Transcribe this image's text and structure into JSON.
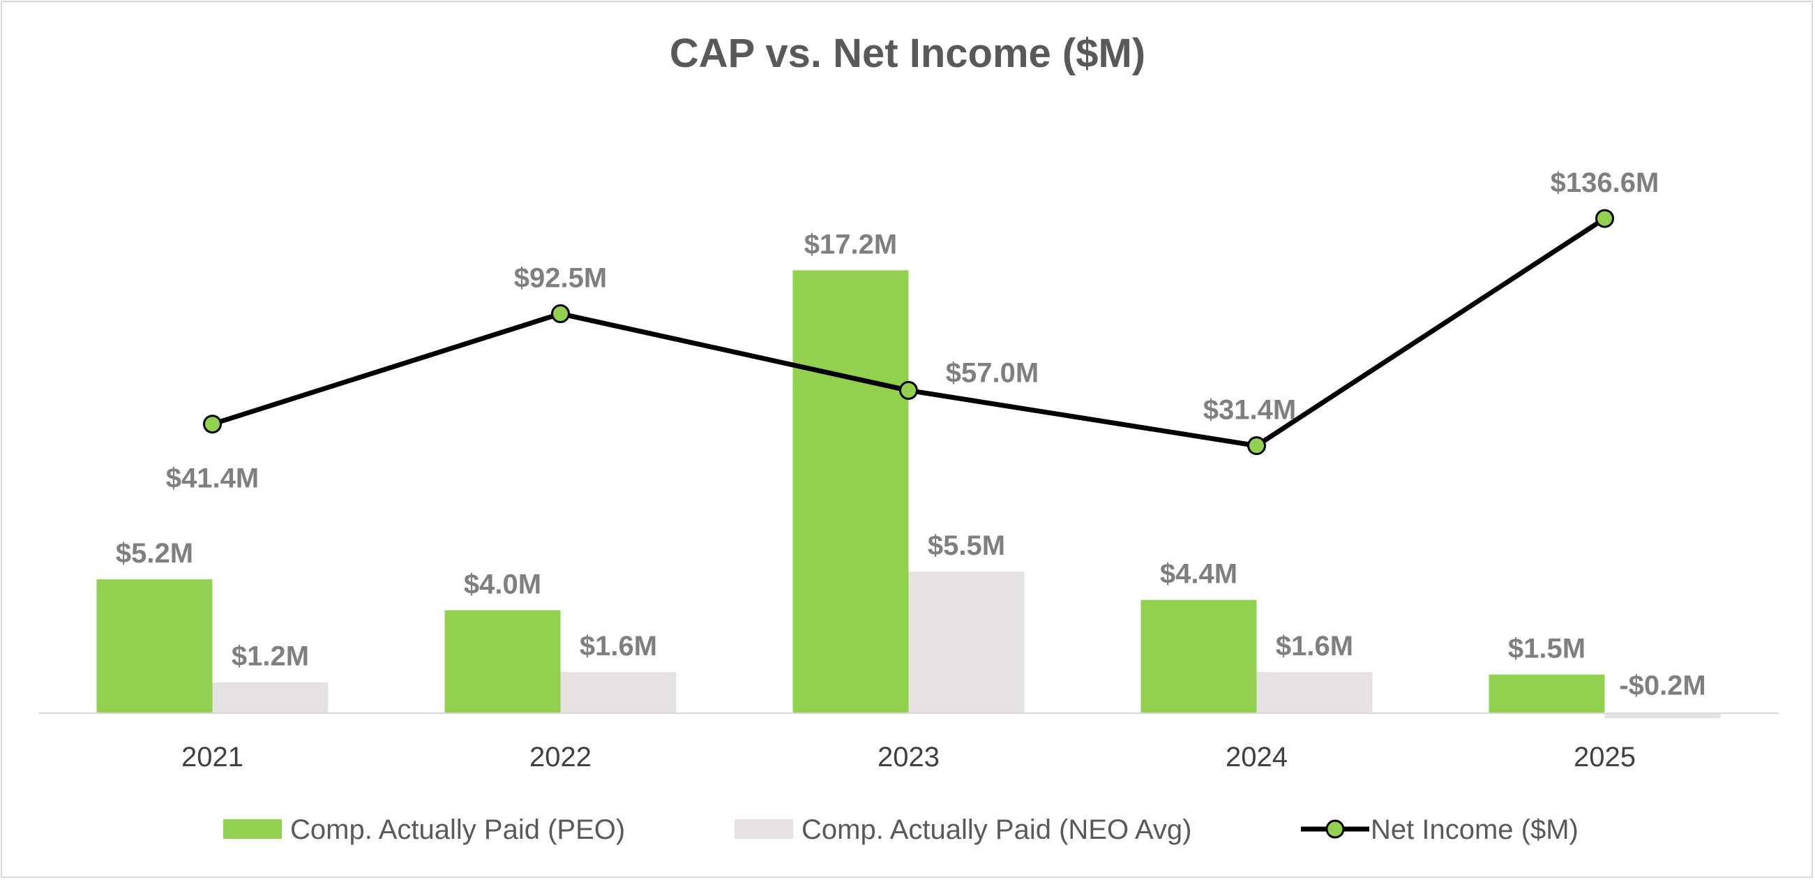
{
  "chart_data": {
    "type": "bar",
    "title": "CAP vs. Net Income ($M)",
    "xlabel": "",
    "ylabel": "",
    "categories": [
      "2021",
      "2022",
      "2023",
      "2024",
      "2025"
    ],
    "series": [
      {
        "name": "Comp. Actually Paid (PEO)",
        "kind": "bar",
        "axis": "primary",
        "color": "#92d050",
        "values": [
          5.2,
          4.0,
          17.2,
          4.4,
          1.5
        ],
        "labels": [
          "$5.2M",
          "$4.0M",
          "$17.2M",
          "$4.4M",
          "$1.5M"
        ]
      },
      {
        "name": "Comp. Actually Paid (NEO Avg)",
        "kind": "bar",
        "axis": "primary",
        "color": "#e7e2e2",
        "values": [
          1.2,
          1.6,
          5.5,
          1.6,
          -0.2
        ],
        "labels": [
          "$1.2M",
          "$1.6M",
          "$5.5M",
          "$1.6M",
          "-$0.2M"
        ]
      },
      {
        "name": "Net Income ($M)",
        "kind": "line",
        "axis": "secondary",
        "color": "#000000",
        "marker_color": "#92d050",
        "values": [
          41.4,
          92.5,
          57.0,
          31.4,
          136.6
        ],
        "labels": [
          "$41.4M",
          "$92.5M",
          "$57.0M",
          "$31.4M",
          "$136.6M"
        ]
      }
    ],
    "ylim_primary": [
      -1,
      21
    ],
    "ylim_secondary": [
      -150,
      220
    ],
    "grid": false,
    "legend": "bottom"
  }
}
